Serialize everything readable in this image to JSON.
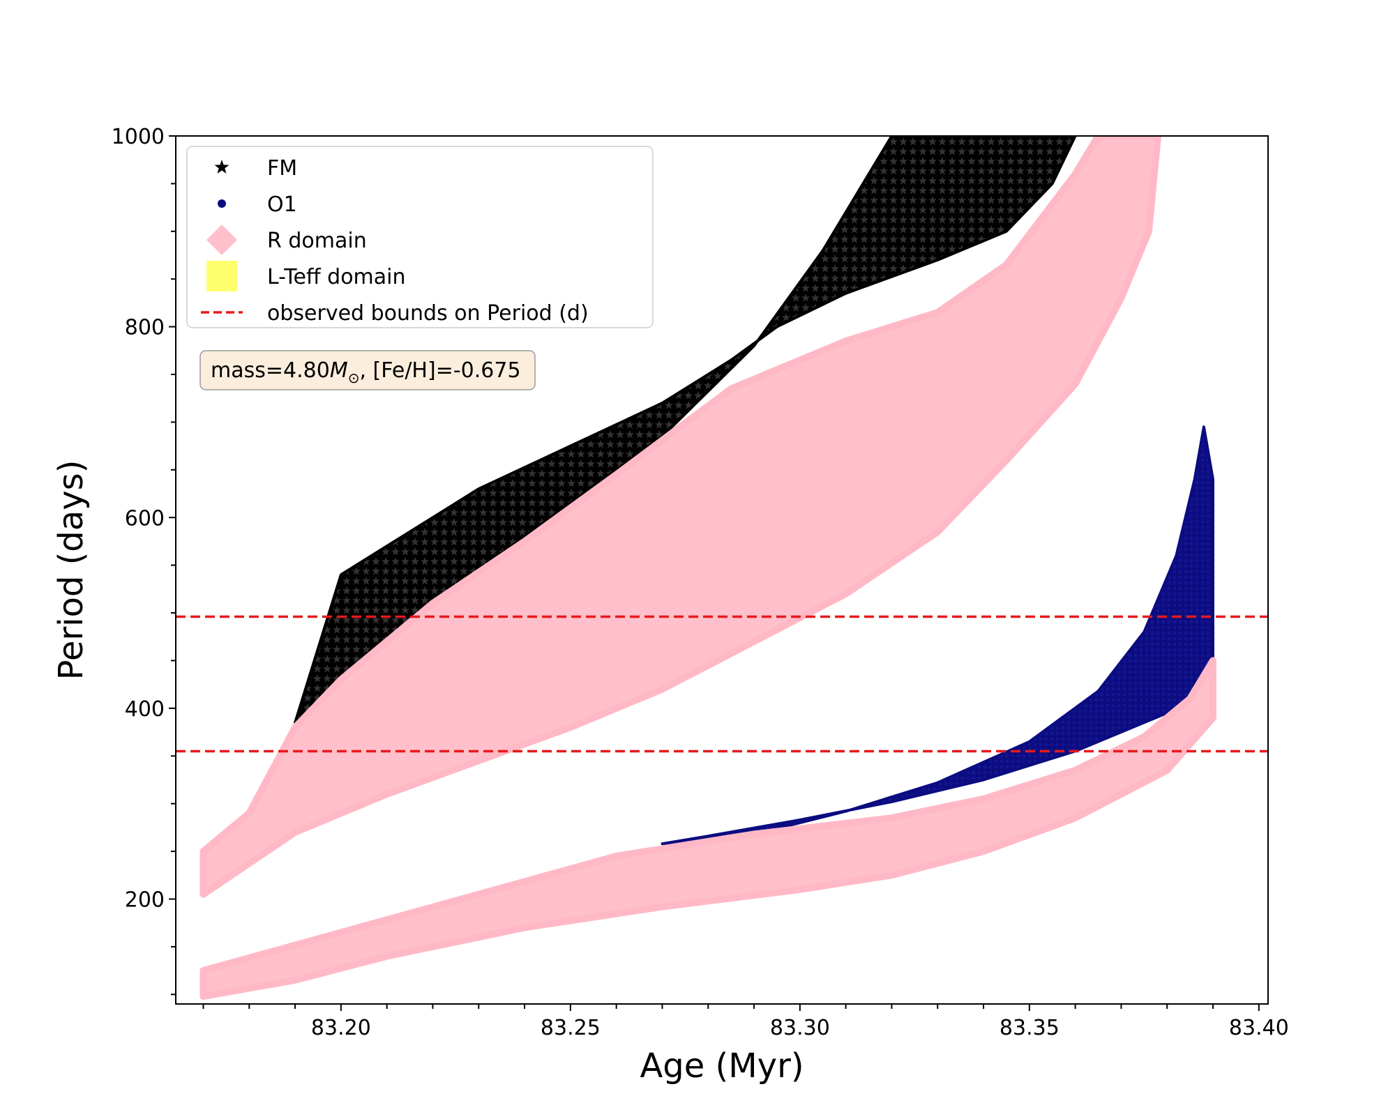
{
  "chart_data": {
    "type": "scatter",
    "title": "",
    "xlabel": "Age (Myr)",
    "ylabel": "Period (days)",
    "xlim": [
      83.164,
      83.402
    ],
    "ylim": [
      90,
      1000
    ],
    "x_ticks": [
      83.2,
      83.25,
      83.3,
      83.35,
      83.4
    ],
    "x_tick_labels": [
      "83.20",
      "83.25",
      "83.30",
      "83.35",
      "83.40"
    ],
    "y_ticks": [
      200,
      400,
      600,
      800,
      1000
    ],
    "y_tick_labels": [
      "200",
      "400",
      "600",
      "800",
      "1000"
    ],
    "grid": false,
    "legend_position": "top-left",
    "annotation": {
      "prefix": "mass=4.80",
      "symbol": "M",
      "subscript": "⊙",
      "suffix": ", [Fe/H]=-0.675"
    },
    "hlines": [
      {
        "y": 355,
        "color": "#e8191b",
        "style": "dashed"
      },
      {
        "y": 496,
        "color": "#e8191b",
        "style": "dashed"
      }
    ],
    "series": [
      {
        "name": "FM",
        "marker": "star",
        "color": "#000000",
        "region": {
          "upper": [
            [
              83.19,
              385
            ],
            [
              83.21,
              470
            ],
            [
              83.23,
              545
            ],
            [
              83.25,
              615
            ],
            [
              83.27,
              685
            ],
            [
              83.29,
              780
            ],
            [
              83.305,
              880
            ],
            [
              83.315,
              960
            ],
            [
              83.32,
              1000
            ],
            [
              83.36,
              1000
            ]
          ],
          "lower": [
            [
              83.36,
              1000
            ],
            [
              83.355,
              950
            ],
            [
              83.345,
              900
            ],
            [
              83.33,
              870
            ],
            [
              83.31,
              835
            ],
            [
              83.295,
              800
            ],
            [
              83.285,
              765
            ],
            [
              83.27,
              720
            ],
            [
              83.23,
              630
            ],
            [
              83.2,
              540
            ],
            [
              83.19,
              385
            ]
          ]
        }
      },
      {
        "name": "O1",
        "marker": "circle",
        "color": "#0b0c80",
        "region": {
          "upper": [
            [
              83.27,
              258
            ],
            [
              83.29,
              268
            ],
            [
              83.31,
              292
            ],
            [
              83.33,
              322
            ],
            [
              83.35,
              365
            ],
            [
              83.365,
              418
            ],
            [
              83.375,
              480
            ],
            [
              83.382,
              560
            ],
            [
              83.386,
              640
            ],
            [
              83.388,
              695
            ]
          ],
          "lower": [
            [
              83.39,
              640
            ],
            [
              83.39,
              420
            ],
            [
              83.38,
              395
            ],
            [
              83.36,
              355
            ],
            [
              83.34,
              325
            ],
            [
              83.32,
              302
            ],
            [
              83.3,
              283
            ],
            [
              83.28,
              266
            ],
            [
              83.27,
              258
            ]
          ]
        }
      },
      {
        "name": "R domain",
        "marker": "diamond",
        "color": "#ffc0cb",
        "regions": [
          {
            "upper": [
              [
                83.17,
                250
              ],
              [
                83.18,
                290
              ],
              [
                83.19,
                380
              ],
              [
                83.2,
                430
              ],
              [
                83.22,
                510
              ],
              [
                83.24,
                575
              ],
              [
                83.26,
                645
              ],
              [
                83.285,
                735
              ],
              [
                83.31,
                785
              ],
              [
                83.33,
                815
              ],
              [
                83.345,
                865
              ],
              [
                83.36,
                960
              ],
              [
                83.365,
                1000
              ],
              [
                83.378,
                1000
              ]
            ],
            "lower": [
              [
                83.378,
                1000
              ],
              [
                83.376,
                900
              ],
              [
                83.37,
                830
              ],
              [
                83.36,
                740
              ],
              [
                83.345,
                660
              ],
              [
                83.33,
                585
              ],
              [
                83.31,
                520
              ],
              [
                83.29,
                470
              ],
              [
                83.27,
                420
              ],
              [
                83.25,
                380
              ],
              [
                83.23,
                345
              ],
              [
                83.21,
                310
              ],
              [
                83.19,
                270
              ],
              [
                83.17,
                205
              ]
            ]
          },
          {
            "upper": [
              [
                83.17,
                125
              ],
              [
                83.2,
                165
              ],
              [
                83.23,
                205
              ],
              [
                83.26,
                245
              ],
              [
                83.29,
                268
              ],
              [
                83.32,
                285
              ],
              [
                83.34,
                305
              ],
              [
                83.36,
                335
              ],
              [
                83.375,
                370
              ],
              [
                83.385,
                410
              ],
              [
                83.39,
                450
              ]
            ],
            "lower": [
              [
                83.39,
                390
              ],
              [
                83.38,
                335
              ],
              [
                83.36,
                285
              ],
              [
                83.34,
                250
              ],
              [
                83.32,
                225
              ],
              [
                83.3,
                210
              ],
              [
                83.27,
                192
              ],
              [
                83.24,
                170
              ],
              [
                83.21,
                140
              ],
              [
                83.19,
                115
              ],
              [
                83.17,
                98
              ]
            ]
          }
        ]
      },
      {
        "name": "L-Teff domain",
        "marker": "square",
        "color": "#ffff6e",
        "region": null
      },
      {
        "name": "observed bounds on Period (d)",
        "marker": "dashed-line",
        "color": "#e8191b",
        "region": null
      }
    ]
  }
}
